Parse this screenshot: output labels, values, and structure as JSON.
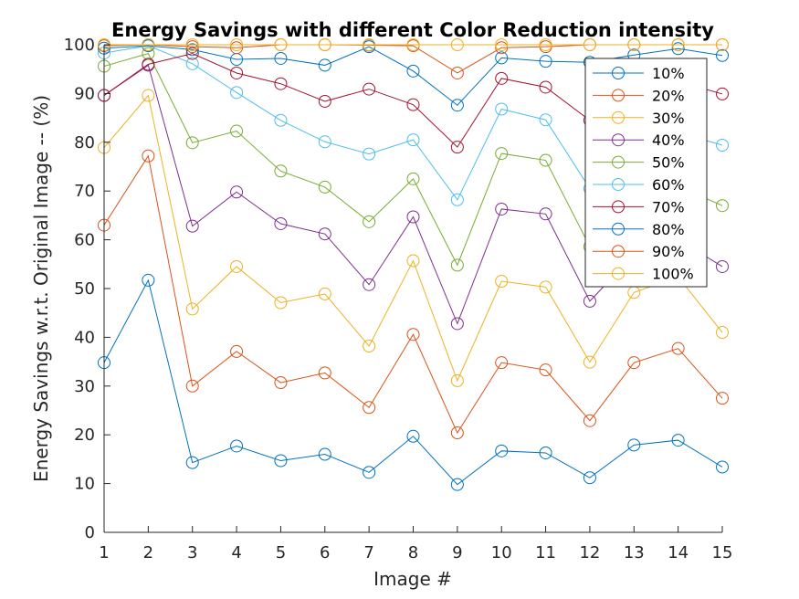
{
  "chart_data": {
    "type": "line",
    "title": "Energy Savings with different Color Reduction intensity",
    "xlabel": "Image #",
    "ylabel": "Energy Savings w.r.t. Original Image -- (%)",
    "xlim": [
      1,
      15
    ],
    "ylim": [
      0,
      100
    ],
    "xticks": [
      1,
      2,
      3,
      4,
      5,
      6,
      7,
      8,
      9,
      10,
      11,
      12,
      13,
      14,
      15
    ],
    "yticks": [
      0,
      10,
      20,
      30,
      40,
      50,
      60,
      70,
      80,
      90,
      100
    ],
    "x": [
      1,
      2,
      3,
      4,
      5,
      6,
      7,
      8,
      9,
      10,
      11,
      12,
      13,
      14,
      15
    ],
    "grid": false,
    "legend_position": "top-right",
    "marker": "open-circle",
    "series": [
      {
        "name": "10%",
        "color": "#0072BD",
        "values": [
          34.8,
          51.7,
          14.3,
          17.7,
          14.7,
          16.0,
          12.3,
          19.7,
          9.8,
          16.7,
          16.3,
          11.2,
          17.9,
          18.9,
          13.4
        ]
      },
      {
        "name": "20%",
        "color": "#D95319",
        "values": [
          63.0,
          77.2,
          30.0,
          37.1,
          30.7,
          32.7,
          25.6,
          40.6,
          20.4,
          34.8,
          33.3,
          22.9,
          34.8,
          37.7,
          27.5
        ]
      },
      {
        "name": "30%",
        "color": "#EDB120",
        "values": [
          78.9,
          89.6,
          45.8,
          54.5,
          47.1,
          48.9,
          38.2,
          55.7,
          31.1,
          51.5,
          50.3,
          34.9,
          49.2,
          52.4,
          41.0
        ]
      },
      {
        "name": "40%",
        "color": "#7E2F8E",
        "values": [
          89.6,
          95.8,
          62.8,
          69.8,
          63.3,
          61.2,
          50.8,
          64.7,
          42.8,
          66.3,
          65.3,
          47.4,
          57.0,
          60.1,
          54.5
        ]
      },
      {
        "name": "50%",
        "color": "#77AC30",
        "values": [
          95.6,
          98.2,
          79.9,
          82.3,
          74.1,
          70.8,
          63.7,
          72.5,
          54.8,
          77.7,
          76.3,
          58.6,
          65.0,
          71.0,
          67.0
        ]
      },
      {
        "name": "60%",
        "color": "#4DBEEE",
        "values": [
          98.3,
          99.8,
          96.1,
          90.2,
          84.5,
          80.1,
          77.6,
          80.5,
          68.2,
          86.8,
          84.6,
          70.5,
          75.0,
          82.0,
          79.4
        ]
      },
      {
        "name": "70%",
        "color": "#A2142F",
        "values": [
          89.6,
          96.0,
          98.2,
          94.2,
          92.0,
          88.4,
          90.9,
          87.7,
          79.0,
          93.1,
          91.3,
          84.5,
          87.0,
          92.5,
          89.9
        ]
      },
      {
        "name": "80%",
        "color": "#0072BD",
        "values": [
          99.3,
          99.8,
          99.0,
          97.0,
          97.2,
          95.8,
          99.6,
          94.6,
          87.6,
          97.3,
          96.6,
          96.4,
          97.9,
          99.2,
          97.8
        ]
      },
      {
        "name": "90%",
        "color": "#D95319",
        "values": [
          99.8,
          100.0,
          99.6,
          99.4,
          100.0,
          100.0,
          99.9,
          99.8,
          94.2,
          99.4,
          99.6,
          100.0,
          100.0,
          100.0,
          100.0
        ]
      },
      {
        "name": "100%",
        "color": "#EDB120",
        "values": [
          100.0,
          100.0,
          100.0,
          100.0,
          100.0,
          100.0,
          100.0,
          100.0,
          100.0,
          100.0,
          100.0,
          100.0,
          100.0,
          100.0,
          100.0
        ]
      }
    ]
  }
}
